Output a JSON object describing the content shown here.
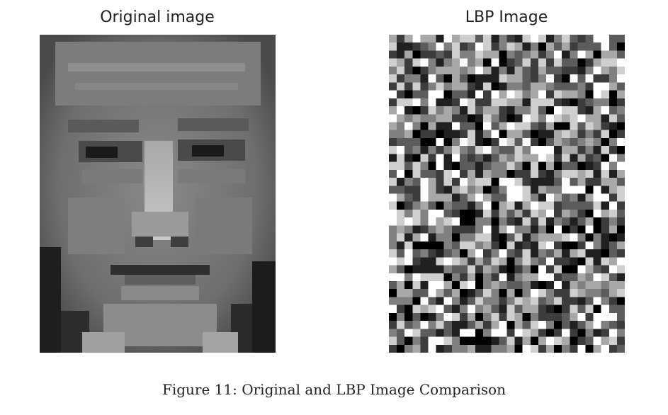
{
  "panels": {
    "left_title": "Original image",
    "right_title": "LBP Image"
  },
  "caption": "Figure 11: Original and LBP Image Comparison"
}
